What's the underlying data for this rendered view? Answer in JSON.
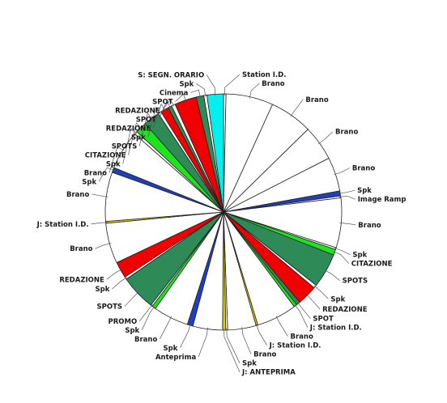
{
  "chart_data": {
    "type": "pie",
    "title": "",
    "start_angle_deg": 0,
    "direction": "clockwise",
    "colors": {
      "white": "#ffffff",
      "cyan": "#00f0f0",
      "blue": "#1f3fbf",
      "green": "#1fe31f",
      "red": "#f00000",
      "darkgreen": "#2e8b57",
      "yellow": "#e0d000",
      "outline": "#222222",
      "leader": "#555555"
    },
    "slices": [
      {
        "label": "Station I.D.",
        "value": 0.4,
        "color": "white"
      },
      {
        "label": "Brano",
        "value": 7.5,
        "color": "white"
      },
      {
        "label": "Brano",
        "value": 6.8,
        "color": "white"
      },
      {
        "label": "Brano",
        "value": 5.6,
        "color": "white"
      },
      {
        "label": "Brano",
        "value": 5.4,
        "color": "white"
      },
      {
        "label": "Spk",
        "value": 0.8,
        "color": "blue"
      },
      {
        "label": "Image Ramp",
        "value": 0.3,
        "color": "white"
      },
      {
        "label": "Brano",
        "value": 7.9,
        "color": "white"
      },
      {
        "label": "Spk",
        "value": 0.3,
        "color": "white"
      },
      {
        "label": "CITAZIONE",
        "value": 0.9,
        "color": "green"
      },
      {
        "label": "SPOTS",
        "value": 5.5,
        "color": "darkgreen"
      },
      {
        "label": "Spk",
        "value": 0.5,
        "color": "white"
      },
      {
        "label": "REDAZIONE",
        "value": 3.2,
        "color": "red"
      },
      {
        "label": "SPOT",
        "value": 0.6,
        "color": "darkgreen"
      },
      {
        "label": "J: Station I.D.",
        "value": 0.5,
        "color": "green"
      },
      {
        "label": "Brano",
        "value": 6.4,
        "color": "white"
      },
      {
        "label": "J: Station I.D.",
        "value": 0.3,
        "color": "yellow"
      },
      {
        "label": "Brano",
        "value": 4.5,
        "color": "white"
      },
      {
        "label": "Spk",
        "value": 0.3,
        "color": "white"
      },
      {
        "label": "J: ANTEPRIMA",
        "value": 0.5,
        "color": "yellow"
      },
      {
        "label": "Anteprima",
        "value": 4.7,
        "color": "white"
      },
      {
        "label": "Spk",
        "value": 0.9,
        "color": "blue"
      },
      {
        "label": "Brano",
        "value": 5.6,
        "color": "white"
      },
      {
        "label": "Spk",
        "value": 0.6,
        "color": "green"
      },
      {
        "label": "PROMO",
        "value": 0.3,
        "color": "white"
      },
      {
        "label": "SPOTS",
        "value": 5.6,
        "color": "darkgreen"
      },
      {
        "label": "Spk",
        "value": 0.4,
        "color": "white"
      },
      {
        "label": "REDAZIONE",
        "value": 2.6,
        "color": "red"
      },
      {
        "label": "Brano",
        "value": 6.4,
        "color": "white"
      },
      {
        "label": "J: Station I.D.",
        "value": 0.3,
        "color": "yellow"
      },
      {
        "label": "Brano",
        "value": 7.8,
        "color": "white"
      },
      {
        "label": "Spk",
        "value": 0.8,
        "color": "blue"
      },
      {
        "label": "Brano",
        "value": 6.2,
        "color": "white"
      },
      {
        "label": "Spk",
        "value": 0.5,
        "color": "white"
      },
      {
        "label": "CITAZIONE",
        "value": 1.8,
        "color": "green"
      },
      {
        "label": "SPOTS",
        "value": 2.6,
        "color": "darkgreen"
      },
      {
        "label": "Spk",
        "value": 0.5,
        "color": "white"
      },
      {
        "label": "REDAZIONE",
        "value": 1.3,
        "color": "red"
      },
      {
        "label": "SPOT",
        "value": 0.6,
        "color": "darkgreen"
      },
      {
        "label": "REDAZIONE",
        "value": 0.6,
        "color": "white"
      },
      {
        "label": "SPOT",
        "value": 3.5,
        "color": "red"
      },
      {
        "label": "Cinema",
        "value": 1.2,
        "color": "darkgreen"
      },
      {
        "label": "Spk",
        "value": 0.5,
        "color": "white"
      },
      {
        "label": "S: SEGN. ORARIO",
        "value": 2.6,
        "color": "cyan"
      }
    ]
  }
}
